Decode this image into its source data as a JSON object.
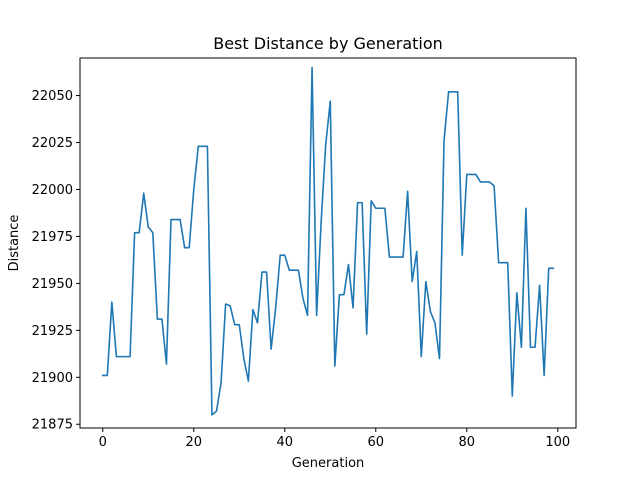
{
  "chart_data": {
    "type": "line",
    "title": "Best Distance by Generation",
    "xlabel": "Generation",
    "ylabel": "Distance",
    "xlim": [
      -5,
      104
    ],
    "ylim": [
      21873,
      22070
    ],
    "xticks": [
      0,
      20,
      40,
      60,
      80,
      100
    ],
    "yticks": [
      21875,
      21900,
      21925,
      21950,
      21975,
      22000,
      22025,
      22050
    ],
    "grid": false,
    "legend": "none",
    "series": [
      {
        "color": "#1f77b4",
        "x": [
          0,
          1,
          2,
          3,
          4,
          5,
          6,
          7,
          8,
          9,
          10,
          11,
          12,
          13,
          14,
          15,
          16,
          17,
          18,
          19,
          20,
          21,
          22,
          23,
          24,
          25,
          26,
          27,
          28,
          29,
          30,
          31,
          32,
          33,
          34,
          35,
          36,
          37,
          38,
          39,
          40,
          41,
          42,
          43,
          44,
          45,
          46,
          47,
          48,
          49,
          50,
          51,
          52,
          53,
          54,
          55,
          56,
          57,
          58,
          59,
          60,
          61,
          62,
          63,
          64,
          65,
          66,
          67,
          68,
          69,
          70,
          71,
          72,
          73,
          74,
          75,
          76,
          77,
          78,
          79,
          80,
          81,
          82,
          83,
          84,
          85,
          86,
          87,
          88,
          89,
          90,
          91,
          92,
          93,
          94,
          95,
          96,
          97,
          98,
          99
        ],
        "values": [
          21901,
          21901,
          21940,
          21911,
          21911,
          21911,
          21911,
          21977,
          21977,
          21998,
          21980,
          21977,
          21931,
          21931,
          21907,
          21984,
          21984,
          21984,
          21969,
          21969,
          22000,
          22023,
          22023,
          22023,
          21880,
          21882,
          21897,
          21939,
          21938,
          21928,
          21928,
          21910,
          21898,
          21936,
          21929,
          21956,
          21956,
          21915,
          21937,
          21965,
          21965,
          21957,
          21957,
          21957,
          21942,
          21933,
          22065,
          21933,
          21983,
          22024,
          22047,
          21906,
          21944,
          21944,
          21960,
          21937,
          21993,
          21993,
          21923,
          21994,
          21990,
          21990,
          21990,
          21964,
          21964,
          21964,
          21964,
          21999,
          21951,
          21967,
          21911,
          21951,
          21935,
          21929,
          21910,
          22026,
          22052,
          22052,
          22052,
          21965,
          22008,
          22008,
          22008,
          22004,
          22004,
          22004,
          22002,
          21961,
          21961,
          21961,
          21890,
          21945,
          21916,
          21990,
          21916,
          21916,
          21949,
          21901,
          21958,
          21958
        ]
      }
    ]
  }
}
